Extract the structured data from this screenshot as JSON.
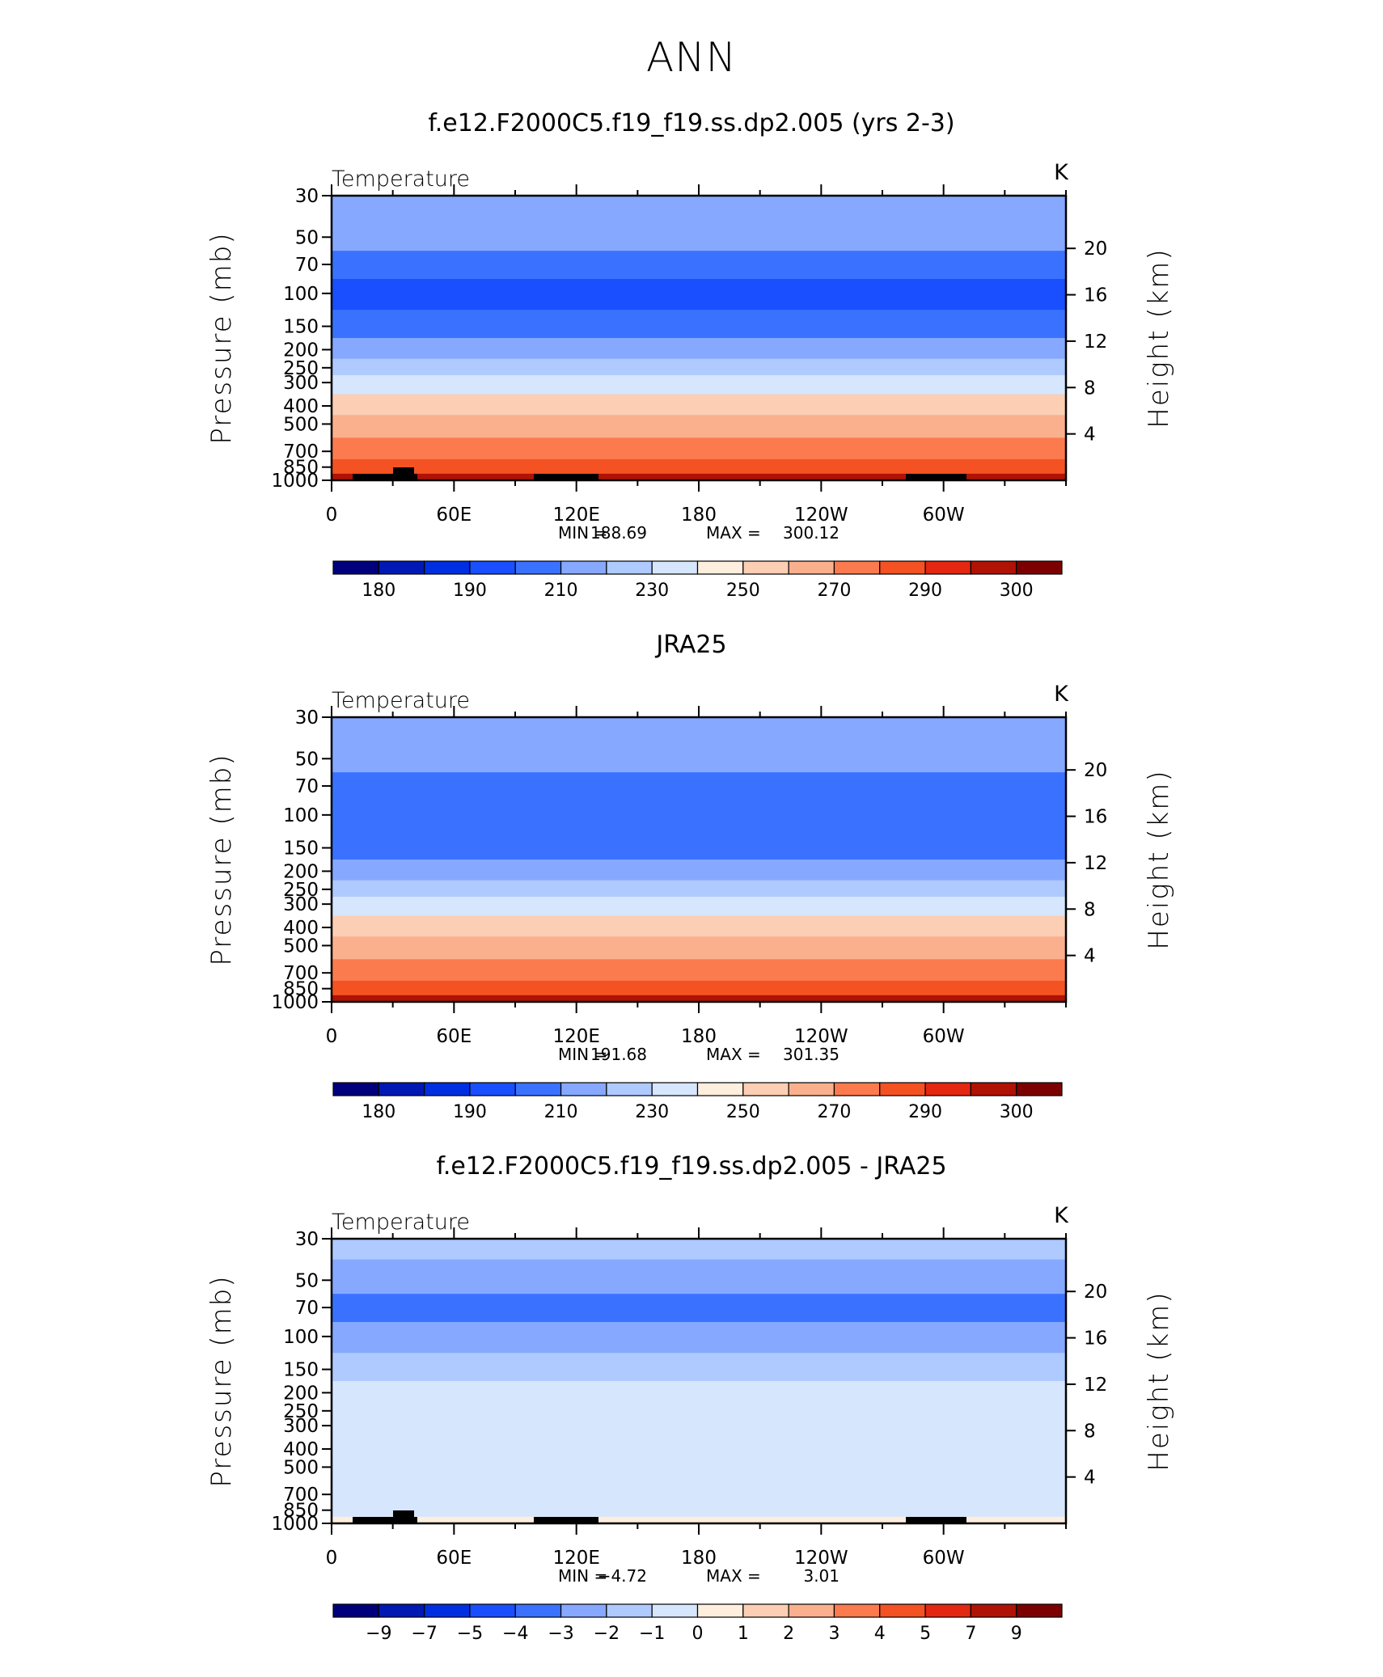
{
  "title": "ANN",
  "colors": {
    "temp_scale": [
      "#00007d",
      "#0018b4",
      "#002ee1",
      "#1a4fff",
      "#3a72ff",
      "#86a8ff",
      "#aecaff",
      "#d6e6fd",
      "#fdeedd",
      "#fccfb4",
      "#fbb08d",
      "#fb7b4e",
      "#f45223",
      "#e32710",
      "#b01205",
      "#7d0000"
    ],
    "land": "#000000"
  },
  "chart_data": [
    {
      "type": "heatmap",
      "name": "model",
      "title": "f.e12.F2000C5.f19_f19.ss.dp2.005 (yrs 2-3)",
      "subtitle_left": "Temperature",
      "units": "K",
      "ylabel": "Pressure (mb)",
      "ylabel_right": "Height (km)",
      "x_ticks": [
        "0",
        "60E",
        "120E",
        "180",
        "120W",
        "60W"
      ],
      "y_ticks": [
        "30",
        "50",
        "70",
        "100",
        "150",
        "200",
        "250",
        "300",
        "400",
        "500",
        "700",
        "850",
        "1000"
      ],
      "y_right_ticks": [
        "20",
        "16",
        "12",
        "8",
        "4"
      ],
      "min_label": "MIN =",
      "min_value": "188.69",
      "max_label": "MAX =",
      "max_value": "300.12",
      "colorbar_labels": [
        "180",
        "190",
        "210",
        "230",
        "250",
        "270",
        "290",
        "300"
      ],
      "levels": [
        {
          "p": 30,
          "t": 216
        },
        {
          "p": 50,
          "t": 211
        },
        {
          "p": 70,
          "t": 203
        },
        {
          "p": 100,
          "t": 197
        },
        {
          "p": 150,
          "t": 205
        },
        {
          "p": 200,
          "t": 218
        },
        {
          "p": 250,
          "t": 228
        },
        {
          "p": 300,
          "t": 238
        },
        {
          "p": 400,
          "t": 252
        },
        {
          "p": 500,
          "t": 263
        },
        {
          "p": 700,
          "t": 278
        },
        {
          "p": 850,
          "t": 288
        },
        {
          "p": 1000,
          "t": 297
        }
      ]
    },
    {
      "type": "heatmap",
      "name": "obs",
      "title": "JRA25",
      "subtitle_left": "Temperature",
      "units": "K",
      "ylabel": "Pressure (mb)",
      "ylabel_right": "Height (km)",
      "x_ticks": [
        "0",
        "60E",
        "120E",
        "180",
        "120W",
        "60W"
      ],
      "y_ticks": [
        "30",
        "50",
        "70",
        "100",
        "150",
        "200",
        "250",
        "300",
        "400",
        "500",
        "700",
        "850",
        "1000"
      ],
      "y_right_ticks": [
        "20",
        "16",
        "12",
        "8",
        "4"
      ],
      "min_label": "MIN =",
      "min_value": "191.68",
      "max_label": "MAX =",
      "max_value": "301.35",
      "colorbar_labels": [
        "180",
        "190",
        "210",
        "230",
        "250",
        "270",
        "290",
        "300"
      ],
      "levels": [
        {
          "p": 30,
          "t": 218
        },
        {
          "p": 50,
          "t": 212
        },
        {
          "p": 70,
          "t": 205
        },
        {
          "p": 100,
          "t": 200
        },
        {
          "p": 150,
          "t": 207
        },
        {
          "p": 200,
          "t": 219
        },
        {
          "p": 250,
          "t": 229
        },
        {
          "p": 300,
          "t": 239
        },
        {
          "p": 400,
          "t": 253
        },
        {
          "p": 500,
          "t": 264
        },
        {
          "p": 700,
          "t": 279
        },
        {
          "p": 850,
          "t": 289
        },
        {
          "p": 1000,
          "t": 298
        }
      ]
    },
    {
      "type": "heatmap",
      "name": "diff",
      "title": "f.e12.F2000C5.f19_f19.ss.dp2.005 - JRA25",
      "subtitle_left": "Temperature",
      "units": "K",
      "ylabel": "Pressure (mb)",
      "ylabel_right": "Height (km)",
      "x_ticks": [
        "0",
        "60E",
        "120E",
        "180",
        "120W",
        "60W"
      ],
      "y_ticks": [
        "30",
        "50",
        "70",
        "100",
        "150",
        "200",
        "250",
        "300",
        "400",
        "500",
        "700",
        "850",
        "1000"
      ],
      "y_right_ticks": [
        "20",
        "16",
        "12",
        "8",
        "4"
      ],
      "min_label": "MIN =",
      "min_value": "−4.72",
      "max_label": "MAX =",
      "max_value": "3.01",
      "colorbar_labels": [
        "−9",
        "−7",
        "−5",
        "−4",
        "−3",
        "−2",
        "−1",
        "0",
        "1",
        "2",
        "3",
        "4",
        "5",
        "7",
        "9"
      ],
      "levels": [
        {
          "p": 30,
          "t": -2
        },
        {
          "p": 50,
          "t": -3
        },
        {
          "p": 70,
          "t": -4
        },
        {
          "p": 100,
          "t": -3
        },
        {
          "p": 150,
          "t": -2
        },
        {
          "p": 200,
          "t": -1
        },
        {
          "p": 250,
          "t": -1
        },
        {
          "p": 300,
          "t": -1
        },
        {
          "p": 400,
          "t": -1
        },
        {
          "p": 500,
          "t": -1
        },
        {
          "p": 700,
          "t": -1
        },
        {
          "p": 850,
          "t": -1
        },
        {
          "p": 1000,
          "t": 0
        }
      ]
    }
  ]
}
